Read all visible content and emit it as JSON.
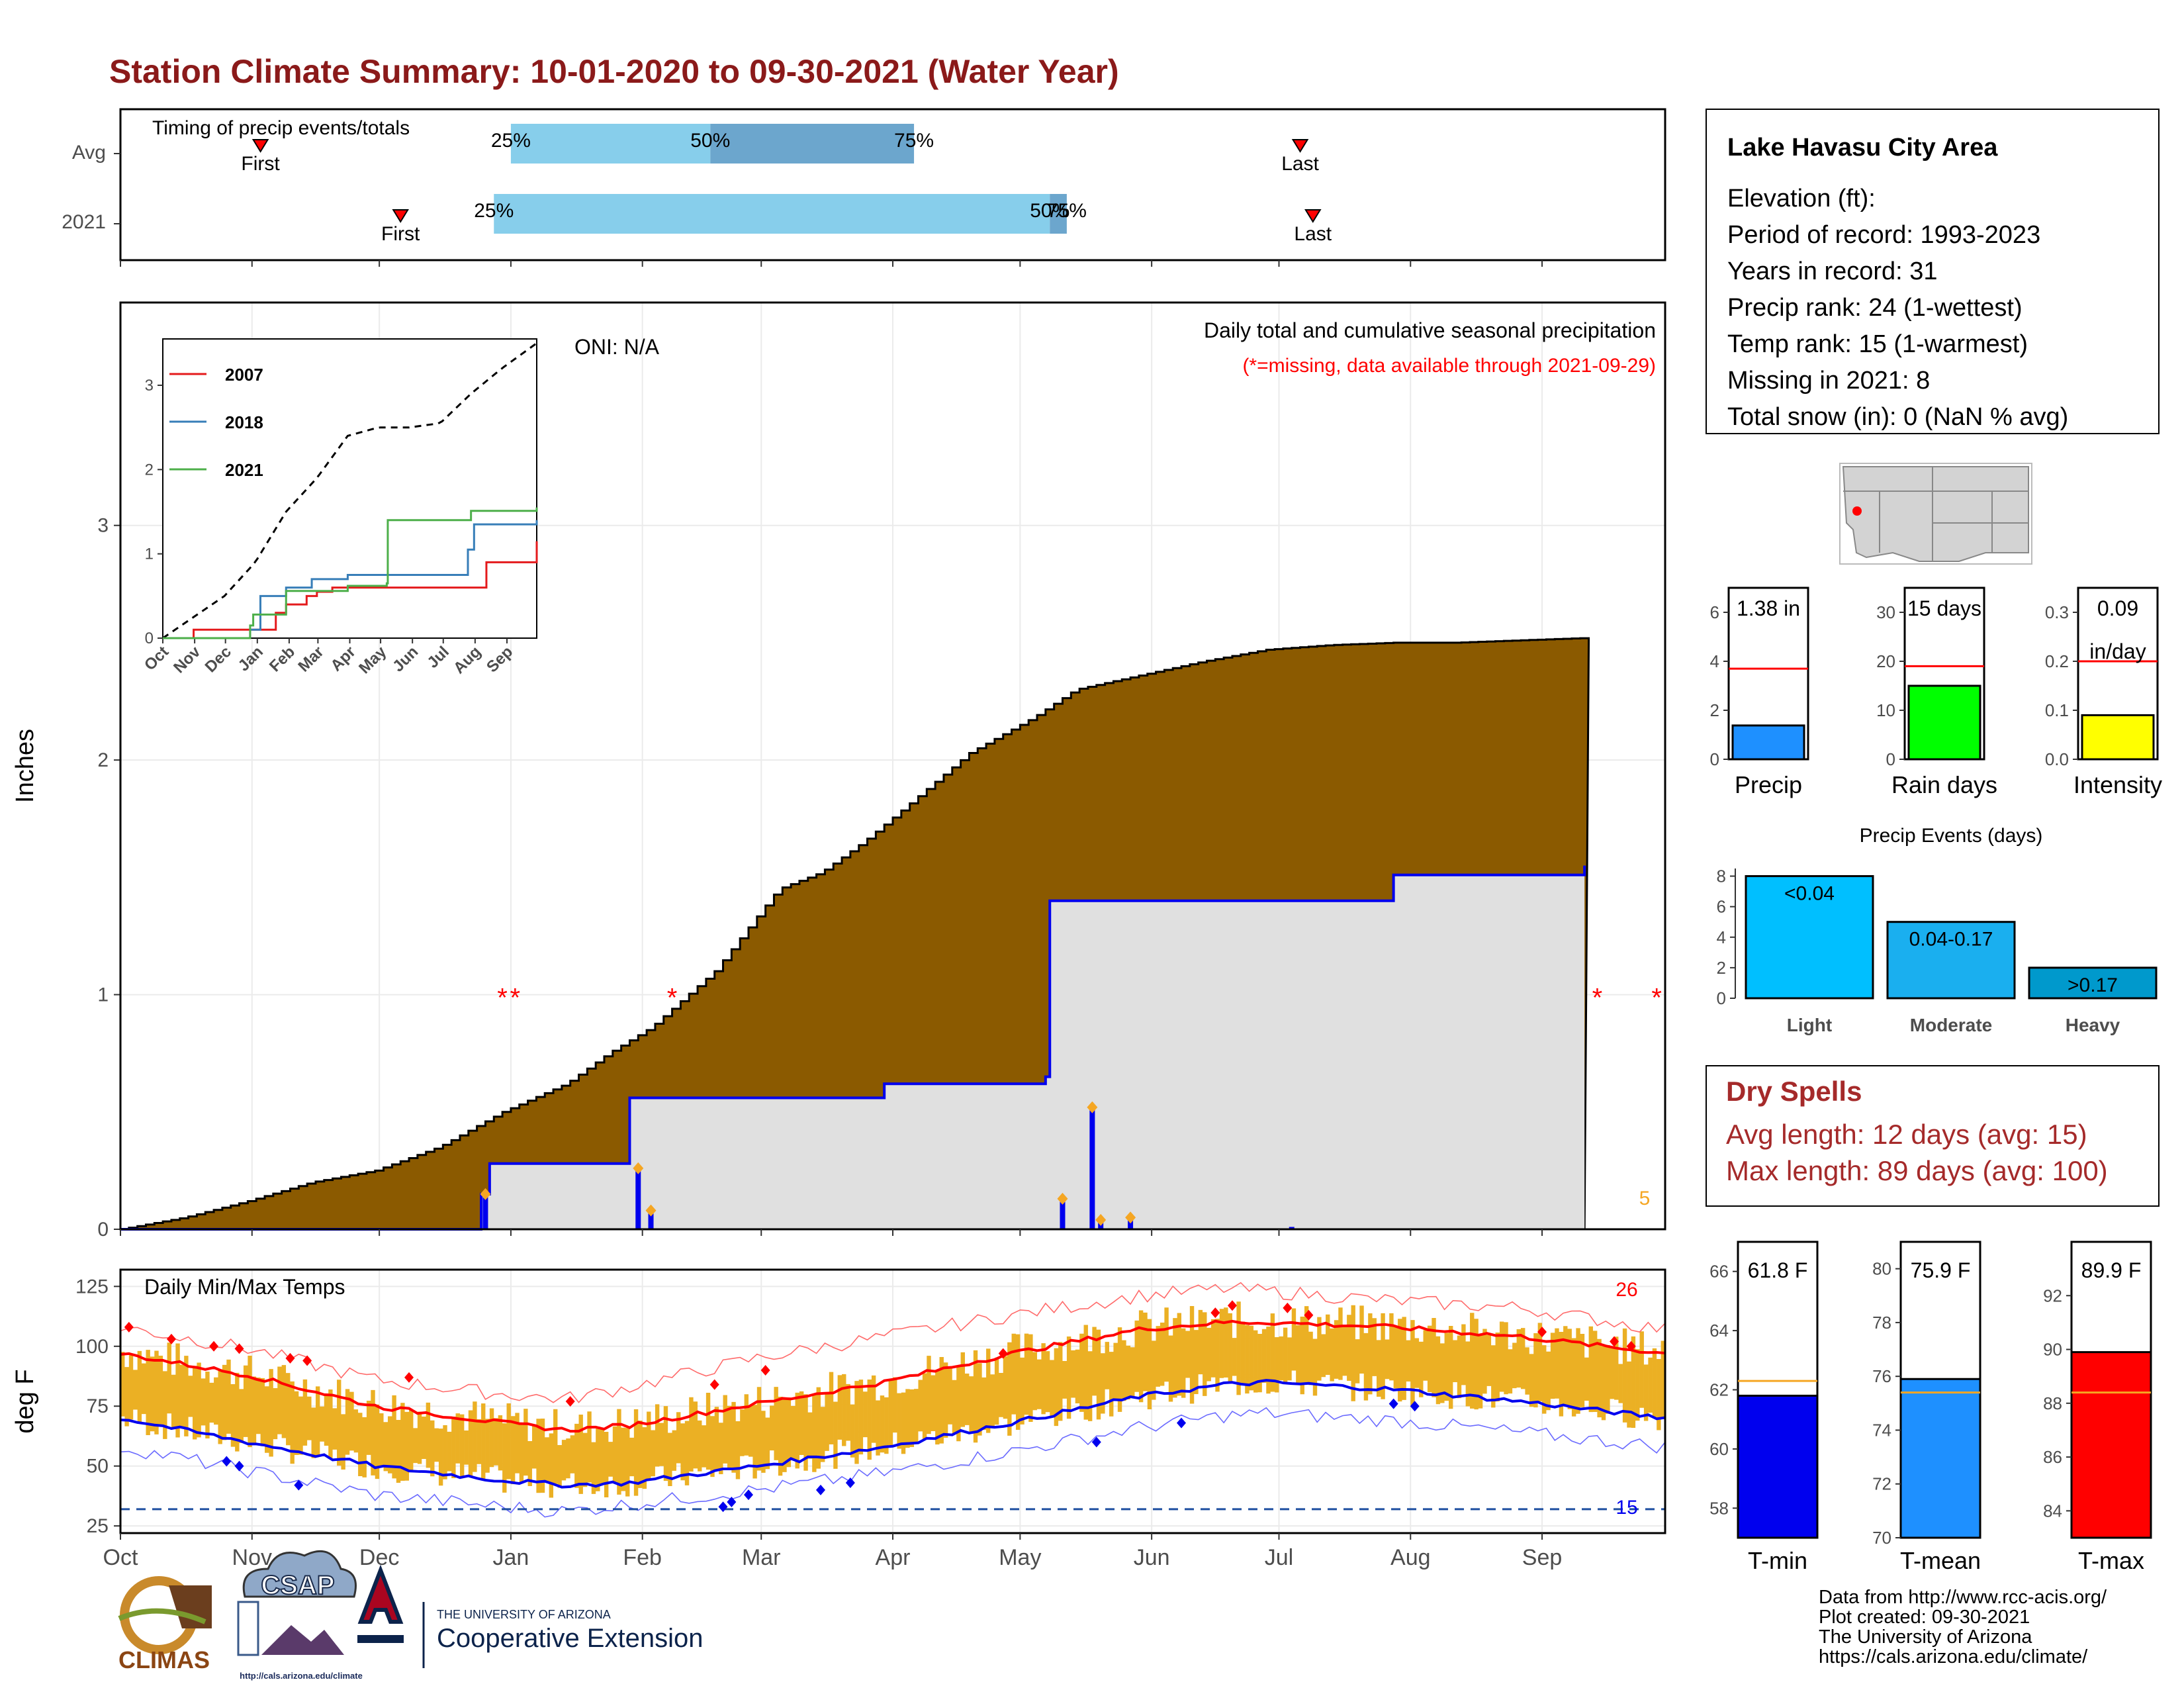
{
  "page_title": "Station Climate Summary: 10-01-2020 to 09-30-2021 (Water Year)",
  "colors": {
    "title": "#8B1A1A",
    "cumulative_fill": "#8B5A00",
    "current_fill": "#E0E0E0",
    "current_line": "#0000EE",
    "quartile_light": "#87CEEB",
    "quartile_dark": "#6CA6CD",
    "temp_band": "#EBB024",
    "tmax_line": "#FF0000",
    "tmin_line": "#0000EE",
    "precip_bar": "#1E90FF",
    "raindays_bar": "#00FF00",
    "intensity_bar": "#FFFF00",
    "event_light": "#00BFFF",
    "event_moderate": "#1AAFEF",
    "event_heavy": "#0099CC",
    "dry_spell_text": "#A52A2A",
    "avg_line_orange": "#F5A623",
    "inset_2007": "#E41A1C",
    "inset_2018": "#377EB8",
    "inset_2021": "#4DAF4A"
  },
  "timing": {
    "title": "Timing of precip events/totals",
    "row_labels": [
      "Avg",
      "2021"
    ],
    "avg": {
      "first_label": "First",
      "last_label": "Last",
      "first_day": 33,
      "last_day": 278,
      "q25_day": 92,
      "q50_day": 139,
      "q75_day": 187
    },
    "current": {
      "first_label": "First",
      "last_label": "Last",
      "first_day": 66,
      "last_day": 281,
      "q25_day": 88,
      "q50_day": 219,
      "q75_day": 223
    },
    "pct_labels": [
      "25%",
      "50%",
      "75%"
    ]
  },
  "station": {
    "name": "Lake Havasu City Area",
    "lines": [
      "Elevation (ft):",
      "Period of record: 1993-2023",
      "Years in record: 31",
      "Precip rank: 24 (1-wettest)",
      "Temp rank: 15 (1-warmest)",
      "Missing in 2021: 8",
      "Total snow (in): 0 (NaN % avg)"
    ]
  },
  "precip_chart": {
    "ylabel": "Inches",
    "annotation_title": "Daily total and cumulative seasonal precipitation",
    "annotation_missing": "(*=missing, data available through 2021-09-29)",
    "oni": "ONI: N/A",
    "count_label": "5",
    "yticks": [
      "0",
      "1",
      "2",
      "3"
    ]
  },
  "months": [
    "Oct",
    "Nov",
    "Dec",
    "Jan",
    "Feb",
    "Mar",
    "Apr",
    "May",
    "Jun",
    "Jul",
    "Aug",
    "Sep"
  ],
  "inset": {
    "legend": [
      "2007",
      "2018",
      "2021"
    ],
    "yticks": [
      "0",
      "1",
      "2",
      "3"
    ],
    "xticks": [
      "Oct",
      "Nov",
      "Dec",
      "Jan",
      "Feb",
      "Mar",
      "Apr",
      "May",
      "Jun",
      "Jul",
      "Aug",
      "Sep"
    ]
  },
  "temp_chart": {
    "title": "Daily Min/Max Temps",
    "ylabel": "deg F",
    "yticks": [
      "25",
      "50",
      "75",
      "100",
      "125"
    ],
    "hot_count": "26",
    "cold_count": "15"
  },
  "precip_stats": {
    "precip": {
      "label": "Precip",
      "value_label": "1.38 in",
      "value": 1.38,
      "avg": 3.7,
      "yticks": [
        "0",
        "2",
        "4",
        "6"
      ]
    },
    "rain_days": {
      "label": "Rain days",
      "value_label": "15 days",
      "value": 15,
      "avg": 19,
      "yticks": [
        "0",
        "10",
        "20",
        "30"
      ]
    },
    "intensity": {
      "label": "Intensity",
      "value_label": "0.09",
      "value_unit": "in/day",
      "value": 0.09,
      "avg": 0.2,
      "yticks": [
        "0.0",
        "0.1",
        "0.2",
        "0.3"
      ]
    }
  },
  "events": {
    "title": "Precip Events (days)",
    "yticks": [
      "0",
      "2",
      "4",
      "6",
      "8"
    ],
    "bars": [
      {
        "label": "Light",
        "bin": "<0.04",
        "value": 8
      },
      {
        "label": "Moderate",
        "bin": "0.04-0.17",
        "value": 5
      },
      {
        "label": "Heavy",
        "bin": ">0.17",
        "value": 2
      }
    ]
  },
  "dry_spells": {
    "title": "Dry Spells",
    "avg_length": "Avg length: 12 days (avg: 15)",
    "max_length": "Max length: 89 days (avg: 100)"
  },
  "temp_stats": {
    "tmin": {
      "label": "T-min",
      "value_label": "61.8 F",
      "value": 61.8,
      "avg": 62.3,
      "yticks": [
        "58",
        "60",
        "62",
        "64",
        "66"
      ]
    },
    "tmean": {
      "label": "T-mean",
      "value_label": "75.9 F",
      "value": 75.9,
      "avg": 75.4,
      "yticks": [
        "70",
        "72",
        "74",
        "76",
        "78",
        "80"
      ]
    },
    "tmax": {
      "label": "T-max",
      "value_label": "89.9 F",
      "value": 89.9,
      "avg": 88.4,
      "yticks": [
        "84",
        "86",
        "88",
        "90",
        "92"
      ]
    }
  },
  "footer": {
    "lines": [
      "Data from http://www.rcc-acis.org/",
      "Plot created: 09-30-2021",
      "The University of Arizona",
      "https://cals.arizona.edu/climate/"
    ],
    "logo_climas": "CLIMAS",
    "logo_csap": "CSAP",
    "logo_csap_url": "http://cals.arizona.edu/climate",
    "ua_small": "THE UNIVERSITY OF ARIZONA",
    "ua_big": "Cooperative Extension"
  },
  "chart_data": [
    {
      "type": "area",
      "title": "Daily total and cumulative seasonal precipitation",
      "ylabel": "Inches",
      "ylim": [
        0,
        3.95
      ],
      "x_unit": "day of water year (0 = Oct 1)",
      "series": [
        {
          "name": "avg_cumulative",
          "x": [
            0,
            15,
            30,
            45,
            60,
            75,
            90,
            105,
            115,
            125,
            140,
            155,
            165,
            175,
            185,
            200,
            215,
            225,
            235,
            245,
            255,
            270,
            285,
            300,
            314,
            345
          ],
          "y": [
            0,
            0.05,
            0.12,
            0.2,
            0.25,
            0.35,
            0.5,
            0.62,
            0.75,
            0.86,
            1.1,
            1.45,
            1.52,
            1.65,
            1.8,
            2.03,
            2.18,
            2.3,
            2.34,
            2.38,
            2.42,
            2.47,
            2.49,
            2.5,
            2.5,
            2.52
          ]
        },
        {
          "name": "2021_cumulative",
          "x": [
            0,
            85,
            87,
            120,
            180,
            218,
            219,
            300,
            345
          ],
          "y": [
            0,
            0.15,
            0.28,
            0.56,
            0.62,
            0.65,
            1.4,
            1.51,
            1.55
          ]
        },
        {
          "name": "2021_daily",
          "x": [
            86,
            122,
            125,
            222,
            229,
            231,
            238,
            276
          ],
          "y": [
            0.15,
            0.26,
            0.08,
            0.13,
            0.52,
            0.04,
            0.05,
            0.01
          ]
        }
      ]
    },
    {
      "type": "line",
      "title": "Daily Min/Max Temps",
      "ylabel": "deg F",
      "ylim": [
        22,
        132
      ],
      "x_unit": "day of water year (0 = Oct 1)",
      "series": [
        {
          "name": "avg_max",
          "x": [
            0,
            30,
            60,
            90,
            105,
            120,
            150,
            180,
            210,
            240,
            260,
            270,
            300,
            330,
            364
          ],
          "y": [
            97,
            88,
            75,
            68,
            65,
            67,
            76,
            85,
            97,
            107,
            110,
            110,
            108,
            104,
            97
          ]
        },
        {
          "name": "avg_min",
          "x": [
            0,
            30,
            60,
            90,
            105,
            120,
            150,
            180,
            210,
            240,
            260,
            270,
            300,
            330,
            364
          ],
          "y": [
            70,
            60,
            50,
            44,
            42,
            43,
            50,
            58,
            68,
            79,
            84,
            85,
            82,
            77,
            70
          ]
        },
        {
          "name": "record_max",
          "x": [
            0,
            30,
            60,
            90,
            105,
            120,
            150,
            180,
            210,
            240,
            260,
            270,
            300,
            330,
            364
          ],
          "y": [
            108,
            99,
            86,
            80,
            78,
            83,
            95,
            104,
            113,
            121,
            124,
            123,
            119,
            116,
            107
          ]
        },
        {
          "name": "record_min",
          "x": [
            0,
            30,
            60,
            90,
            105,
            120,
            150,
            180,
            210,
            240,
            260,
            270,
            300,
            330,
            364
          ],
          "y": [
            58,
            48,
            38,
            33,
            31,
            34,
            40,
            47,
            56,
            66,
            71,
            72,
            69,
            64,
            58
          ]
        }
      ]
    },
    {
      "type": "bar",
      "title": "Precip Events (days)",
      "categories": [
        "Light",
        "Moderate",
        "Heavy"
      ],
      "values": [
        8,
        5,
        2
      ],
      "ylim": [
        0,
        8.5
      ]
    },
    {
      "type": "bar",
      "categories": [
        "Precip",
        "Rain days",
        "Intensity"
      ],
      "values": [
        1.38,
        15,
        0.09
      ],
      "averages": [
        3.7,
        19,
        0.2
      ]
    },
    {
      "type": "bar",
      "categories": [
        "T-min",
        "T-mean",
        "T-max"
      ],
      "values": [
        61.8,
        75.9,
        89.9
      ],
      "averages": [
        62.3,
        75.4,
        88.4
      ]
    }
  ]
}
